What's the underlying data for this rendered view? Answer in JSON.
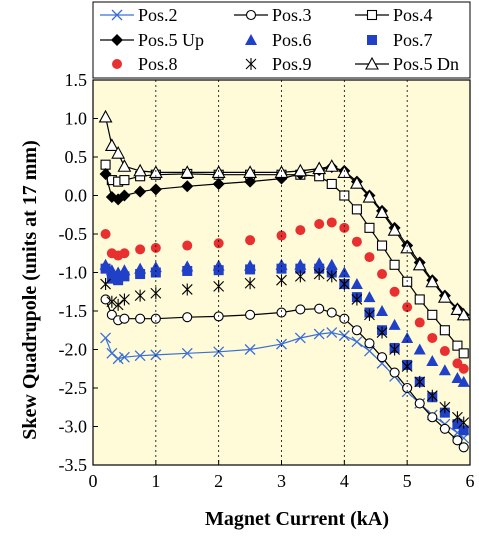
{
  "chart_data": {
    "type": "scatter",
    "title": "",
    "xlabel": "Magnet Current (kA)",
    "ylabel": "Skew Quadrupole (units at 17 mm)",
    "xlim": [
      0,
      6
    ],
    "ylim": [
      -3.5,
      1.5
    ],
    "x_ticks": [
      0,
      1,
      2,
      3,
      4,
      5,
      6
    ],
    "y_ticks": [
      -3.5,
      -3.0,
      -2.5,
      -2.0,
      -1.5,
      -1.0,
      -0.5,
      0.0,
      0.5,
      1.0,
      1.5
    ],
    "x_tick_labels": [
      "0",
      "1",
      "2",
      "3",
      "4",
      "5",
      "6"
    ],
    "y_tick_labels": [
      "-3.5",
      "-3.0",
      "-2.5",
      "-2.0",
      "-1.5",
      "-1.0",
      "-0.5",
      "0.0",
      "0.5",
      "1.0",
      "1.5"
    ],
    "grid": false,
    "plot_background": "#FFFBD8",
    "legend_position": "top",
    "series": [
      {
        "name": "Pos.2",
        "marker": "x",
        "color": "#3A6FD8",
        "line": true,
        "x": [
          0.2,
          0.3,
          0.4,
          0.5,
          0.75,
          1.0,
          1.5,
          2.0,
          2.5,
          3.0,
          3.3,
          3.6,
          3.8,
          4.0,
          4.2,
          4.4,
          4.6,
          4.8,
          5.0,
          5.2,
          5.4,
          5.6,
          5.8,
          5.9
        ],
        "y": [
          -1.85,
          -2.05,
          -2.12,
          -2.1,
          -2.08,
          -2.07,
          -2.05,
          -2.03,
          -2.0,
          -1.93,
          -1.85,
          -1.8,
          -1.78,
          -1.82,
          -1.9,
          -2.02,
          -2.18,
          -2.35,
          -2.55,
          -2.7,
          -2.85,
          -2.97,
          -3.08,
          -3.15
        ]
      },
      {
        "name": "Pos.3",
        "marker": "circle-open",
        "color": "#000000",
        "line": true,
        "x": [
          0.2,
          0.3,
          0.4,
          0.5,
          0.75,
          1.0,
          1.5,
          2.0,
          2.5,
          3.0,
          3.3,
          3.6,
          3.8,
          4.0,
          4.2,
          4.4,
          4.6,
          4.8,
          5.0,
          5.2,
          5.4,
          5.6,
          5.8,
          5.9
        ],
        "y": [
          -1.35,
          -1.55,
          -1.62,
          -1.6,
          -1.6,
          -1.6,
          -1.58,
          -1.57,
          -1.55,
          -1.52,
          -1.48,
          -1.47,
          -1.52,
          -1.6,
          -1.75,
          -1.92,
          -2.1,
          -2.3,
          -2.5,
          -2.7,
          -2.88,
          -3.03,
          -3.18,
          -3.27
        ]
      },
      {
        "name": "Pos.4",
        "marker": "square-open",
        "color": "#000000",
        "line": true,
        "x": [
          0.2,
          0.3,
          0.4,
          0.5,
          0.75,
          1.0,
          1.5,
          2.0,
          2.5,
          3.0,
          3.3,
          3.6,
          3.8,
          4.0,
          4.2,
          4.4,
          4.6,
          4.8,
          5.0,
          5.2,
          5.4,
          5.6,
          5.8,
          5.9
        ],
        "y": [
          0.4,
          0.2,
          0.18,
          0.2,
          0.25,
          0.27,
          0.28,
          0.27,
          0.27,
          0.27,
          0.27,
          0.25,
          0.15,
          0.0,
          -0.18,
          -0.42,
          -0.65,
          -0.9,
          -1.12,
          -1.35,
          -1.55,
          -1.75,
          -1.95,
          -2.05
        ]
      },
      {
        "name": "Pos.5 Up",
        "marker": "diamond-filled",
        "color": "#000000",
        "line": true,
        "x": [
          0.2,
          0.3,
          0.4,
          0.5,
          0.75,
          1.0,
          1.5,
          2.0,
          2.5,
          3.0,
          3.3,
          3.6,
          3.8,
          4.0,
          4.2,
          4.4,
          4.6,
          4.8,
          5.0,
          5.2,
          5.4,
          5.6,
          5.8,
          5.9
        ],
        "y": [
          0.28,
          -0.02,
          -0.05,
          0.0,
          0.05,
          0.08,
          0.12,
          0.15,
          0.18,
          0.22,
          0.28,
          0.33,
          0.37,
          0.32,
          0.18,
          0.0,
          -0.2,
          -0.42,
          -0.65,
          -0.87,
          -1.1,
          -1.3,
          -1.47,
          -1.55
        ]
      },
      {
        "name": "Pos.6",
        "marker": "triangle-filled",
        "color": "#2040C8",
        "line": false,
        "x": [
          0.2,
          0.3,
          0.4,
          0.5,
          0.75,
          1.0,
          1.5,
          2.0,
          2.5,
          3.0,
          3.3,
          3.6,
          3.8,
          4.0,
          4.2,
          4.4,
          4.6,
          4.8,
          5.0,
          5.2,
          5.4,
          5.6,
          5.8,
          5.9
        ],
        "y": [
          -0.9,
          -0.97,
          -1.0,
          -0.97,
          -0.95,
          -0.93,
          -0.92,
          -0.91,
          -0.91,
          -0.9,
          -0.9,
          -0.88,
          -0.9,
          -1.0,
          -1.15,
          -1.32,
          -1.5,
          -1.68,
          -1.85,
          -2.0,
          -2.15,
          -2.27,
          -2.37,
          -2.42
        ]
      },
      {
        "name": "Pos.7",
        "marker": "square-filled",
        "color": "#2040C8",
        "line": false,
        "x": [
          0.2,
          0.3,
          0.4,
          0.5,
          0.75,
          1.0,
          1.5,
          2.0,
          2.5,
          3.0,
          3.3,
          3.6,
          3.8,
          4.0,
          4.2,
          4.4,
          4.6,
          4.8,
          5.0,
          5.2,
          5.4,
          5.6,
          5.8,
          5.9
        ],
        "y": [
          -0.95,
          -1.08,
          -1.1,
          -1.05,
          -1.02,
          -1.0,
          -0.98,
          -0.97,
          -0.96,
          -0.95,
          -0.95,
          -0.95,
          -1.0,
          -1.15,
          -1.32,
          -1.52,
          -1.75,
          -1.98,
          -2.2,
          -2.42,
          -2.62,
          -2.82,
          -2.97,
          -3.05
        ]
      },
      {
        "name": "Pos.8",
        "marker": "circle-filled",
        "color": "#E83030",
        "line": false,
        "x": [
          0.2,
          0.3,
          0.4,
          0.5,
          0.75,
          1.0,
          1.5,
          2.0,
          2.5,
          3.0,
          3.3,
          3.6,
          3.8,
          4.0,
          4.2,
          4.4,
          4.6,
          4.8,
          5.0,
          5.2,
          5.4,
          5.6,
          5.8,
          5.9
        ],
        "y": [
          -0.5,
          -0.75,
          -0.78,
          -0.75,
          -0.7,
          -0.68,
          -0.65,
          -0.62,
          -0.58,
          -0.52,
          -0.45,
          -0.37,
          -0.35,
          -0.42,
          -0.6,
          -0.8,
          -1.02,
          -1.25,
          -1.45,
          -1.65,
          -1.85,
          -2.02,
          -2.18,
          -2.25
        ]
      },
      {
        "name": "Pos.9",
        "marker": "asterisk",
        "color": "#000000",
        "line": false,
        "x": [
          0.2,
          0.3,
          0.4,
          0.5,
          0.75,
          1.0,
          1.5,
          2.0,
          2.5,
          3.0,
          3.3,
          3.6,
          3.8,
          4.0,
          4.2,
          4.4,
          4.6,
          4.8,
          5.0,
          5.2,
          5.4,
          5.6,
          5.8,
          5.9
        ],
        "y": [
          -1.15,
          -1.38,
          -1.42,
          -1.35,
          -1.3,
          -1.27,
          -1.22,
          -1.18,
          -1.14,
          -1.1,
          -1.05,
          -1.02,
          -1.05,
          -1.15,
          -1.35,
          -1.55,
          -1.78,
          -2.0,
          -2.22,
          -2.42,
          -2.6,
          -2.75,
          -2.88,
          -2.95
        ]
      },
      {
        "name": "Pos.5 Dn",
        "marker": "triangle-open",
        "color": "#000000",
        "line": true,
        "x": [
          0.2,
          0.3,
          0.4,
          0.5,
          0.75,
          1.0,
          1.5,
          2.0,
          2.5,
          3.0,
          3.3,
          3.6,
          3.8,
          4.0,
          4.2,
          4.4,
          4.6,
          4.8,
          5.0,
          5.2,
          5.4,
          5.6,
          5.8,
          5.9
        ],
        "y": [
          1.02,
          0.65,
          0.55,
          0.38,
          0.32,
          0.3,
          0.3,
          0.3,
          0.3,
          0.3,
          0.32,
          0.35,
          0.38,
          0.3,
          0.16,
          -0.02,
          -0.22,
          -0.45,
          -0.68,
          -0.9,
          -1.12,
          -1.32,
          -1.48,
          -1.55
        ]
      }
    ]
  }
}
